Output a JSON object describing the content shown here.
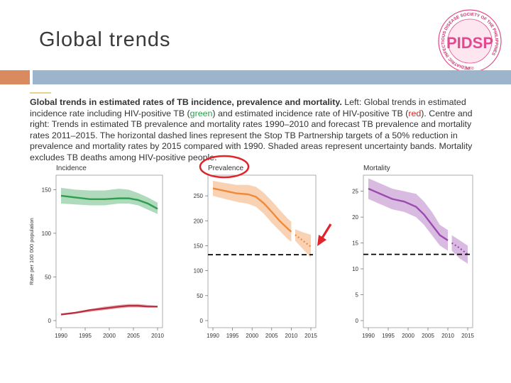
{
  "slide": {
    "title": "Global trends"
  },
  "logo": {
    "text_ring": "PEDIATRIC INFECTIOUS DISEASE SOCIETY OF THE PHILIPPINES",
    "letters": "PIDSP",
    "year": "1993"
  },
  "caption": {
    "bold": "Global trends in estimated rates of TB incidence, prevalence and mortality.",
    "part1": " Left: Global trends in estimated incidence rate including HIV-positive TB (",
    "green_word": "green",
    "part2": ") and estimated incidence rate of HIV-positive TB (",
    "red_word": "red",
    "part3": "). Centre and right: Trends in estimated TB prevalence and mortality rates 1990–2010 and forecast TB prevalence and mortality rates 2011–2015. The horizontal dashed lines represent the Stop TB Partnership targets of a 50% reduction in prevalence and mortality rates by 2015 compared with 1990. Shaded areas represent uncertainty bands. Mortality excludes TB deaths among HIV-positive people."
  },
  "colors": {
    "green": "#2e9e4f",
    "red": "#b83040",
    "orange": "#ee8a3a",
    "purple": "#9b4bb0",
    "target": "#000000",
    "annotation": "#e0242a"
  },
  "chart_data": [
    {
      "type": "line",
      "title": "Incidence",
      "ylabel": "Rate per 100 000 population",
      "xlim": [
        1990,
        2010
      ],
      "ylim": [
        0,
        160
      ],
      "xticks": [
        1990,
        1995,
        2000,
        2005,
        2010
      ],
      "yticks": [
        0,
        50,
        100,
        150
      ],
      "series": [
        {
          "color": "green",
          "x": [
            1990,
            1993,
            1996,
            1999,
            2002,
            2004,
            2006,
            2008,
            2010
          ],
          "values": [
            143,
            141,
            139,
            139,
            140,
            140,
            138,
            134,
            128
          ],
          "lower": [
            134,
            133,
            132,
            132,
            134,
            134,
            132,
            127,
            122
          ],
          "upper": [
            152,
            150,
            149,
            149,
            151,
            150,
            146,
            141,
            135
          ]
        },
        {
          "color": "red",
          "x": [
            1990,
            1993,
            1996,
            1999,
            2002,
            2004,
            2006,
            2008,
            2010
          ],
          "values": [
            7,
            9,
            12,
            14,
            16,
            17,
            17,
            16,
            16
          ],
          "lower": [
            6,
            8,
            10,
            12,
            14,
            15,
            15,
            15,
            15
          ],
          "upper": [
            8,
            10,
            13,
            16,
            18,
            19,
            19,
            18,
            17
          ]
        }
      ]
    },
    {
      "type": "line",
      "title": "Prevalence",
      "xlim": [
        1990,
        2015
      ],
      "ylim": [
        0,
        280
      ],
      "xticks": [
        1990,
        1995,
        2000,
        2005,
        2010,
        2015
      ],
      "yticks": [
        0,
        50,
        100,
        150,
        200,
        250
      ],
      "target": 132,
      "series": [
        {
          "color": "orange",
          "x": [
            1990,
            1993,
            1996,
            1999,
            2001,
            2003,
            2005,
            2007,
            2009,
            2010
          ],
          "values": [
            265,
            260,
            255,
            253,
            248,
            235,
            218,
            200,
            185,
            178
          ],
          "lower": [
            250,
            244,
            238,
            234,
            228,
            214,
            196,
            180,
            164,
            158
          ],
          "upper": [
            280,
            276,
            272,
            272,
            268,
            256,
            240,
            222,
            205,
            198
          ]
        },
        {
          "color": "orange",
          "forecast": true,
          "x": [
            2011,
            2013,
            2015
          ],
          "values": [
            172,
            160,
            148
          ],
          "lower": [
            160,
            143,
            126
          ],
          "upper": [
            183,
            177,
            172
          ]
        }
      ]
    },
    {
      "type": "line",
      "title": "Mortality",
      "xlim": [
        1990,
        2015
      ],
      "ylim": [
        0,
        27
      ],
      "xticks": [
        1990,
        1995,
        2000,
        2005,
        2010,
        2015
      ],
      "yticks": [
        0,
        5,
        10,
        15,
        20,
        25
      ],
      "target": 12.8,
      "series": [
        {
          "color": "purple",
          "x": [
            1990,
            1993,
            1996,
            1999,
            2002,
            2004,
            2006,
            2008,
            2010
          ],
          "values": [
            25.5,
            24.5,
            23.5,
            23,
            22,
            20.5,
            18.5,
            16.5,
            15.5
          ],
          "lower": [
            23.5,
            22.5,
            21.5,
            21,
            20,
            18.5,
            16.5,
            14.5,
            13.5
          ],
          "upper": [
            27.5,
            26.5,
            25.5,
            25,
            24.5,
            23,
            21,
            18.5,
            17.5
          ]
        },
        {
          "color": "purple",
          "forecast": true,
          "x": [
            2011,
            2013,
            2015
          ],
          "values": [
            15,
            14,
            12.8
          ],
          "lower": [
            13.5,
            12,
            11
          ],
          "upper": [
            16.5,
            15.5,
            14.5
          ]
        }
      ]
    }
  ]
}
